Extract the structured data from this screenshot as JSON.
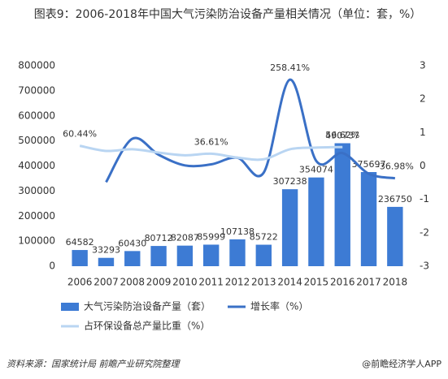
{
  "chart_data": {
    "type": "bar",
    "title": "图表9：2006-2018年中国大气污染防治设备产量相关情况（单位：套，%）",
    "categories": [
      "2006",
      "2007",
      "2008",
      "2009",
      "2010",
      "2011",
      "2012",
      "2013",
      "2014",
      "2015",
      "2016",
      "2017",
      "2018"
    ],
    "series": [
      {
        "name": "大气污染防治设备产量（套）",
        "type": "bar",
        "color": "#3d7bd4",
        "axis": "y",
        "values": [
          64582,
          33293,
          60430,
          80712,
          82087,
          85999,
          107138,
          85722,
          307238,
          354074,
          490737,
          375697,
          236750
        ]
      },
      {
        "name": "增长率（%）",
        "type": "line",
        "color": "#3a70c6",
        "axis": "y2",
        "values": [
          null,
          -0.4845,
          0.815,
          0.3357,
          0.017,
          0.0477,
          0.2458,
          -0.2,
          2.5841,
          0.1524,
          0.386,
          -0.2344,
          -0.3698
        ],
        "value_labels": [
          null,
          null,
          null,
          null,
          null,
          null,
          null,
          null,
          "258.41%",
          null,
          null,
          null,
          "-36.98%"
        ]
      },
      {
        "name": "占环保设备总产量比重（%）",
        "type": "line",
        "color": "#b9d5f2",
        "axis": "y2",
        "values": [
          0.6044,
          0.45,
          0.5,
          0.4,
          0.32,
          0.3661,
          0.25,
          0.2,
          0.5,
          0.55,
          0.5662,
          null,
          null
        ],
        "value_labels": [
          "60.44%",
          null,
          null,
          null,
          null,
          "36.61%",
          null,
          null,
          null,
          null,
          "56.62%",
          null,
          null
        ]
      }
    ],
    "ylim": [
      0,
      800000
    ],
    "yticks": [
      0,
      100000,
      200000,
      300000,
      400000,
      500000,
      600000,
      700000,
      800000
    ],
    "y2lim": [
      -3,
      3
    ],
    "y2ticks": [
      -3,
      -2,
      -1,
      0,
      1,
      2,
      3
    ],
    "legend": "bottom",
    "source": "资料来源：国家统计局 前瞻产业研究院整理",
    "credit": "@前瞻经济学人APP"
  }
}
